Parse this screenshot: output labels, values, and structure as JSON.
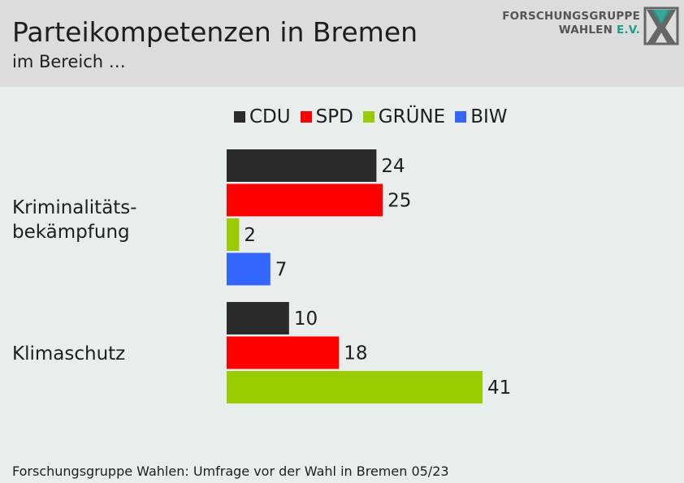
{
  "header": {
    "title": "Parteikompetenzen in Bremen",
    "subtitle": "im Bereich …",
    "logo_line1": "FORSCHUNGSGRUPPE",
    "logo_line2_main": "WAHLEN",
    "logo_line2_suffix": "E.V."
  },
  "footer": {
    "source": "Forschungsgruppe Wahlen: Umfrage vor der Wahl in Bremen 05/23"
  },
  "colors": {
    "CDU": "#2b2b2b",
    "SPD": "#ff0000",
    "GRÜNE": "#99cc00",
    "BIW": "#3366ff",
    "logo_accent": "#1c9c8c"
  },
  "chart_data": {
    "type": "bar",
    "orientation": "horizontal",
    "categories": [
      "Kriminalitäts-\nbekämpfung",
      "Klimaschutz"
    ],
    "legend": [
      "CDU",
      "SPD",
      "GRÜNE",
      "BIW"
    ],
    "legend_position": "top",
    "series": [
      {
        "name": "CDU",
        "values": [
          24,
          10
        ]
      },
      {
        "name": "SPD",
        "values": [
          25,
          18
        ]
      },
      {
        "name": "GRÜNE",
        "values": [
          2,
          41
        ]
      },
      {
        "name": "BIW",
        "values": [
          7,
          null
        ]
      }
    ],
    "xlim": [
      0,
      45
    ],
    "grid": false,
    "data_labels": true
  }
}
